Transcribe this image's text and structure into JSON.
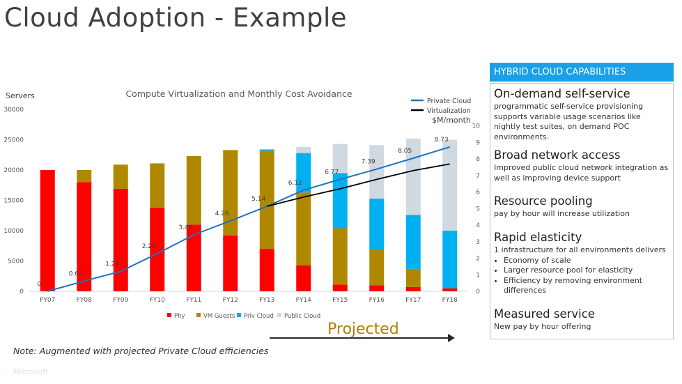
{
  "slide": {
    "title": "Cloud Adoption - Example",
    "note": "Note: Augmented with projected Private Cloud efficiencies",
    "projected_label": "Projected",
    "faint_footer": "Microsoft"
  },
  "panel": {
    "header": "HYBRID CLOUD CAPABILITIES",
    "capabilities": [
      {
        "title": "On-demand self-service",
        "desc": "programmatic self-service provisioning supports variable usage scenarios like nightly test suites, on demand POC environments."
      },
      {
        "title": "Broad network access",
        "desc": "Improved public cloud network integration as well as improving device support"
      },
      {
        "title": "Resource pooling",
        "desc": "pay by hour will increase utilization"
      },
      {
        "title": "Rapid elasticity",
        "desc": "1 infrastructure for all environments delivers",
        "bullets": [
          "Economy of scale",
          "Larger resource pool for elasticity",
          "Efficiency by removing environment differences"
        ]
      },
      {
        "title": "Measured service",
        "desc": "New pay by hour offering"
      }
    ]
  },
  "colors": {
    "phy": "#ff0000",
    "vm": "#b08800",
    "priv": "#00b0f0",
    "pub": "#d0d8e0",
    "private_line": "#1e73be",
    "virt_line": "#000000",
    "header_bg": "#1aa0e8"
  },
  "chart_data": {
    "type": "bar",
    "stacked": true,
    "title": "Compute Virtualization and Monthly Cost Avoidance",
    "ylabel": "Servers",
    "y2label": "$M/month",
    "ylim": [
      0,
      30000
    ],
    "y2lim": [
      0,
      11
    ],
    "yticks": [
      "0",
      "5000",
      "10000",
      "15000",
      "20000",
      "25000",
      "30000"
    ],
    "y2ticks": [
      "0",
      "1",
      "2",
      "3",
      "4",
      "5",
      "6",
      "7",
      "8",
      "9",
      "10"
    ],
    "categories": [
      "FY07",
      "FY08",
      "FY09",
      "FY10",
      "FY11",
      "FY12",
      "FY13",
      "FY14",
      "FY15",
      "FY16",
      "FY17",
      "FY18"
    ],
    "series": [
      {
        "name": "Phy",
        "values": [
          20000,
          18000,
          16900,
          13800,
          11000,
          9200,
          7000,
          4300,
          1100,
          1000,
          700,
          500
        ]
      },
      {
        "name": "VM Guests",
        "values": [
          0,
          2000,
          4000,
          7300,
          11300,
          14100,
          16200,
          12000,
          9300,
          6000,
          3000,
          0
        ]
      },
      {
        "name": "Priv Cloud",
        "values": [
          0,
          0,
          0,
          0,
          0,
          0,
          200,
          6500,
          9100,
          8300,
          8900,
          9500
        ]
      },
      {
        "name": "Public Cloud",
        "values": [
          0,
          0,
          0,
          0,
          0,
          0,
          0,
          1000,
          4800,
          8800,
          12600,
          15000
        ]
      }
    ],
    "lines": [
      {
        "name": "Private Cloud",
        "values": [
          0,
          0.62,
          1.21,
          2.28,
          3.42,
          4.26,
          5.14,
          6.12,
          6.77,
          7.39,
          8.05,
          8.73
        ]
      },
      {
        "name": "Virtualization",
        "values": [
          null,
          null,
          null,
          null,
          null,
          null,
          5.14,
          5.7,
          6.2,
          6.77,
          7.3,
          7.7
        ]
      }
    ],
    "data_labels": [
      {
        "text": "0",
        "index": 0,
        "value": 0
      },
      {
        "text": "0.62",
        "index": 1,
        "value": 0.62
      },
      {
        "text": "1.21",
        "index": 2,
        "value": 1.21
      },
      {
        "text": "2.28",
        "index": 3,
        "value": 2.28
      },
      {
        "text": "3.42",
        "index": 4,
        "value": 3.42
      },
      {
        "text": "4.26",
        "index": 5,
        "value": 4.26
      },
      {
        "text": "5.14",
        "index": 6,
        "value": 5.14
      },
      {
        "text": "6.12",
        "index": 7,
        "value": 6.12
      },
      {
        "text": "6.77",
        "index": 8,
        "value": 6.77
      },
      {
        "text": "7.39",
        "index": 9,
        "value": 7.39
      },
      {
        "text": "8.05",
        "index": 10,
        "value": 8.05
      },
      {
        "text": "8.73",
        "index": 11,
        "value": 8.73
      }
    ],
    "legend_bottom": [
      "Phy",
      "VM Guests",
      "Priv Cloud",
      "Public Cloud"
    ],
    "legend_lines": [
      "Private Cloud",
      "Virtualization"
    ]
  }
}
